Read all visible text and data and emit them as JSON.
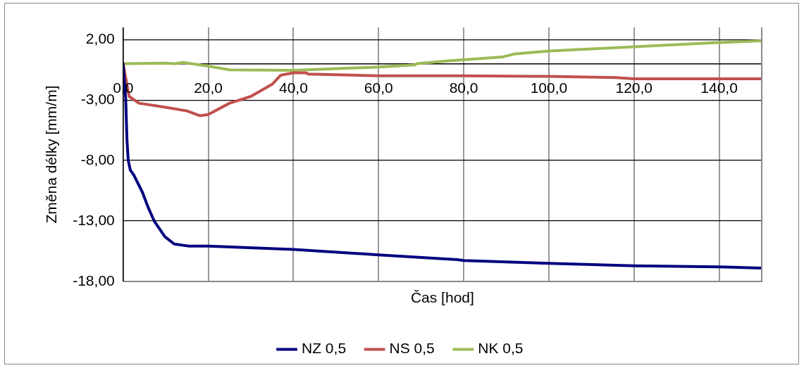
{
  "chart_data": {
    "type": "line",
    "xlabel": "Čas [hod]",
    "ylabel": "Změna délky [mm/m]",
    "xlim": [
      0,
      150
    ],
    "ylim": [
      -18,
      3
    ],
    "xticks": [
      {
        "value": 0,
        "label": "0,0"
      },
      {
        "value": 20,
        "label": "20,0"
      },
      {
        "value": 40,
        "label": "40,0"
      },
      {
        "value": 60,
        "label": "60,0"
      },
      {
        "value": 80,
        "label": "80,0"
      },
      {
        "value": 100,
        "label": "100,0"
      },
      {
        "value": 120,
        "label": "120,0"
      },
      {
        "value": 140,
        "label": "140,0"
      }
    ],
    "yticks": [
      {
        "value": 2,
        "label": "2,00"
      },
      {
        "value": -3,
        "label": "-3,00"
      },
      {
        "value": -8,
        "label": "-8,00"
      },
      {
        "value": -13,
        "label": "-13,00"
      },
      {
        "value": -18,
        "label": "-18,00"
      }
    ],
    "grid": true,
    "legend": "bottom",
    "marker": "none",
    "line_style": "solid",
    "series": [
      {
        "name": "NZ 0,5",
        "color": "#000080",
        "x": [
          0,
          0.3,
          0.6,
          0.9,
          1.2,
          1.7,
          2.5,
          4.5,
          5.9,
          7.3,
          9.8,
          12,
          15.3,
          20,
          40,
          60,
          78.5,
          80,
          100,
          120,
          140,
          150
        ],
        "values": [
          0,
          -1.5,
          -2.9,
          -6.3,
          -8,
          -8.8,
          -9.2,
          -10.6,
          -11.9,
          -13,
          -14.3,
          -14.9,
          -15.07,
          -15.07,
          -15.36,
          -15.8,
          -16.2,
          -16.27,
          -16.5,
          -16.7,
          -16.8,
          -16.9
        ]
      },
      {
        "name": "NS 0,5",
        "color": "#c0504d",
        "x": [
          0,
          1.4,
          3.7,
          10,
          15,
          18,
          20,
          25,
          30,
          35,
          37,
          40,
          43,
          43.4,
          60,
          80,
          100,
          115.7,
          120,
          150
        ],
        "values": [
          0,
          -2.7,
          -3.26,
          -3.6,
          -3.9,
          -4.3,
          -4.2,
          -3.26,
          -2.7,
          -1.7,
          -0.95,
          -0.75,
          -0.75,
          -0.85,
          -1.0,
          -1.0,
          -1.05,
          -1.15,
          -1.25,
          -1.25
        ]
      },
      {
        "name": "NK 0,5",
        "color": "#9bbb59",
        "x": [
          0,
          10,
          12,
          14.1,
          20,
          25,
          40,
          60,
          68.5,
          69,
          76.9,
          89,
          91.8,
          100,
          120,
          140,
          150
        ],
        "values": [
          0,
          0.05,
          0,
          0.1,
          -0.2,
          -0.5,
          -0.55,
          -0.27,
          -0.1,
          0,
          0.25,
          0.55,
          0.8,
          1.05,
          1.4,
          1.75,
          1.9
        ]
      }
    ]
  }
}
